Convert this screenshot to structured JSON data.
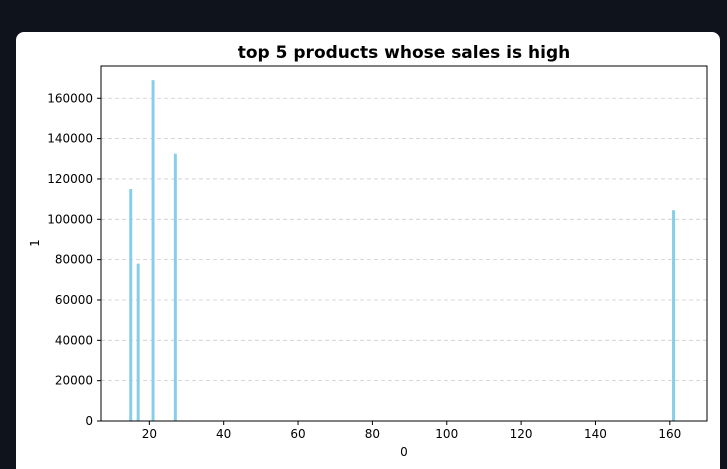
{
  "colors": {
    "background": "#0f131b",
    "card": "#ffffff",
    "bar": "#87ceeb",
    "grid": "#cccccc"
  },
  "chart_data": {
    "type": "bar",
    "title": "top 5 products whose sales is high",
    "xlabel": "0",
    "ylabel": "1",
    "xlim": [
      7,
      170
    ],
    "ylim": [
      0,
      176000
    ],
    "x": [
      15,
      17,
      21,
      27,
      161
    ],
    "values": [
      115000,
      78000,
      169000,
      132500,
      104500
    ],
    "bar_width": 0.8,
    "xticks": [
      20,
      40,
      60,
      80,
      100,
      120,
      140,
      160
    ],
    "yticks": [
      0,
      20000,
      40000,
      60000,
      80000,
      100000,
      120000,
      140000,
      160000
    ],
    "grid": "horizontal dashed",
    "legend": "none"
  }
}
